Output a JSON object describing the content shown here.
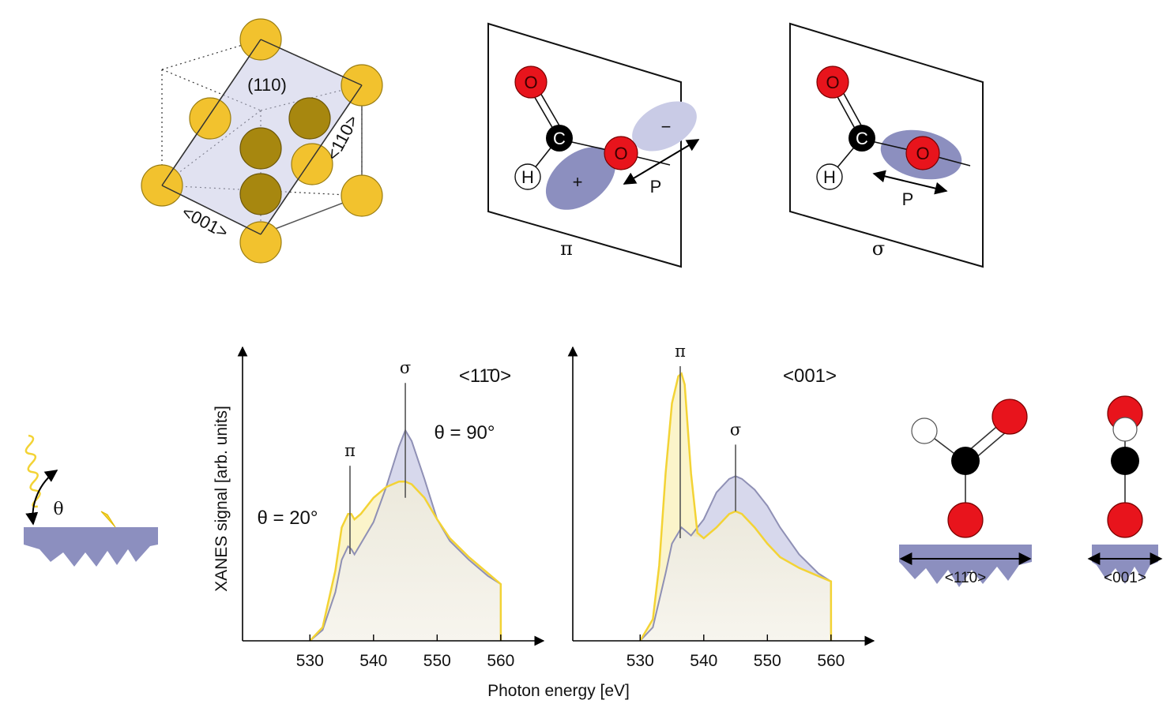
{
  "colors": {
    "gold": "#f2c22e",
    "gold_dark": "#9a7d12",
    "lavender": "#8c8fbf",
    "lavender_light": "#c9cbe6",
    "oxygen": "#e8141c",
    "carbon": "#000000",
    "yellow_curve": "#f3d335",
    "purple_curve": "#8f90b5"
  },
  "crystal": {
    "plane_label": "(110)",
    "dir_110_label": "<110>",
    "dir_001_label": "<001>"
  },
  "orbitals": {
    "pi": {
      "label": "π",
      "atoms": {
        "o_top": "O",
        "c": "C",
        "o_mid": "O",
        "h": "H"
      },
      "lobe_plus": "+",
      "lobe_minus": "−",
      "polarization": "P"
    },
    "sigma": {
      "label": "σ",
      "atoms": {
        "o_top": "O",
        "c": "C",
        "o_mid": "O",
        "h": "H"
      },
      "polarization": "P"
    }
  },
  "incidence": {
    "angle_label": "θ"
  },
  "chart_data": [
    {
      "type": "area",
      "title": "<11̄0>",
      "xlabel": "Photon energy [eV]",
      "ylabel": "XANES signal [arb. units]",
      "xlim": [
        525,
        563
      ],
      "ylim": [
        0,
        1.0
      ],
      "xticks": [
        530,
        540,
        550,
        560
      ],
      "series": [
        {
          "name": "θ = 90°",
          "x": [
            530,
            532,
            534,
            535,
            536,
            536.5,
            537,
            538,
            540,
            542,
            544,
            545,
            546,
            548,
            550,
            552,
            555,
            558,
            560,
            560.01
          ],
          "values": [
            0.0,
            0.04,
            0.18,
            0.3,
            0.35,
            0.34,
            0.32,
            0.36,
            0.44,
            0.57,
            0.72,
            0.78,
            0.74,
            0.6,
            0.45,
            0.37,
            0.3,
            0.24,
            0.21,
            0.0
          ]
        },
        {
          "name": "θ = 20°",
          "x": [
            530,
            532,
            534,
            535,
            536,
            536.5,
            537,
            538,
            540,
            542,
            544,
            545,
            546,
            548,
            550,
            552,
            555,
            558,
            560,
            560.01
          ],
          "values": [
            0.0,
            0.05,
            0.26,
            0.42,
            0.47,
            0.47,
            0.45,
            0.47,
            0.53,
            0.57,
            0.59,
            0.59,
            0.58,
            0.53,
            0.45,
            0.38,
            0.31,
            0.25,
            0.21,
            0.0
          ]
        }
      ],
      "annotations": {
        "pi": {
          "label": "π",
          "x": 536.3
        },
        "sigma": {
          "label": "σ",
          "x": 545
        },
        "theta_90": "θ = 90°",
        "theta_20": "θ = 20°"
      }
    },
    {
      "type": "area",
      "title": "<001>",
      "xlabel": "Photon energy [eV]",
      "ylabel": "XANES signal [arb. units]",
      "xlim": [
        525,
        563
      ],
      "ylim": [
        0,
        1.0
      ],
      "xticks": [
        530,
        540,
        550,
        560
      ],
      "series": [
        {
          "name": "θ = 90°",
          "x": [
            530,
            532,
            534,
            535,
            536,
            536.5,
            537,
            538,
            540,
            542,
            544,
            545,
            546,
            548,
            550,
            552,
            555,
            558,
            560,
            560.01
          ],
          "values": [
            0.0,
            0.05,
            0.25,
            0.36,
            0.4,
            0.42,
            0.41,
            0.39,
            0.45,
            0.55,
            0.6,
            0.61,
            0.6,
            0.56,
            0.5,
            0.42,
            0.32,
            0.25,
            0.22,
            0.0
          ]
        },
        {
          "name": "θ = 20°",
          "x": [
            530,
            532,
            533,
            534,
            535,
            536,
            536.5,
            537,
            538,
            539,
            540,
            542,
            544,
            545,
            546,
            548,
            550,
            552,
            555,
            558,
            560,
            560.01
          ],
          "values": [
            0.0,
            0.08,
            0.28,
            0.62,
            0.88,
            0.98,
            0.99,
            0.95,
            0.62,
            0.4,
            0.38,
            0.42,
            0.47,
            0.48,
            0.47,
            0.42,
            0.36,
            0.31,
            0.27,
            0.24,
            0.22,
            0.0
          ]
        }
      ],
      "annotations": {
        "pi": {
          "label": "π",
          "x": 536.3
        },
        "sigma": {
          "label": "σ",
          "x": 545
        }
      }
    }
  ],
  "adsorbed": {
    "dir_110_label": "<11̄0>",
    "dir_001_label": "<001>"
  }
}
